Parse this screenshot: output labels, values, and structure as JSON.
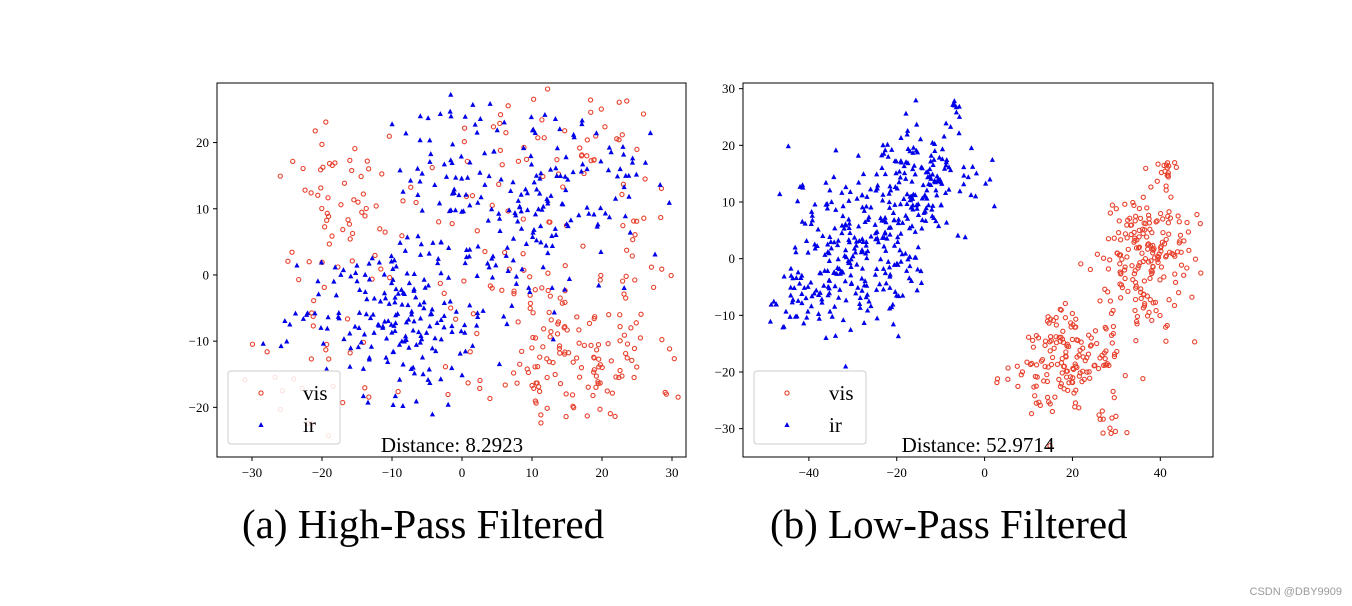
{
  "chart_data": [
    {
      "type": "scatter",
      "id": "panel-a",
      "title": "",
      "xlabel": "",
      "ylabel": "",
      "xlim": [
        -35,
        32
      ],
      "ylim": [
        -27.5,
        29
      ],
      "xticks": [
        -30,
        -20,
        -10,
        0,
        10,
        20,
        30
      ],
      "yticks": [
        -20,
        -10,
        0,
        10,
        20
      ],
      "tick_labels_x": [
        "−30",
        "−20",
        "−10",
        "0",
        "10",
        "20",
        "30"
      ],
      "tick_labels_y": [
        "−20",
        "−10",
        "0",
        "10",
        "20"
      ],
      "legend_position": "lower-left",
      "annotation": "Distance: 8.2923",
      "seed": 11,
      "series": [
        {
          "name": "vis",
          "marker": "circle",
          "color": "#e8402c",
          "clusters": [
            {
              "cx": 16,
              "cy": -12,
              "sx": 6,
              "sy": 6,
              "n": 140
            },
            {
              "cx": -17,
              "cy": 12,
              "sx": 5,
              "sy": 6,
              "n": 55
            },
            {
              "cx": 12,
              "cy": 19,
              "sx": 9,
              "sy": 5,
              "n": 55
            },
            {
              "cx": -20,
              "cy": -12,
              "sx": 5,
              "sy": 6,
              "n": 30
            },
            {
              "cx": 2,
              "cy": 3,
              "sx": 6,
              "sy": 7,
              "n": 30
            },
            {
              "cx": 26,
              "cy": 3,
              "sx": 2,
              "sy": 6,
              "n": 20
            }
          ]
        },
        {
          "name": "ir",
          "marker": "triangle",
          "color": "#0000e8",
          "clusters": [
            {
              "cx": -10,
              "cy": -6,
              "sx": 7,
              "sy": 6,
              "n": 190
            },
            {
              "cx": 8,
              "cy": 10,
              "sx": 7,
              "sy": 7,
              "n": 160
            },
            {
              "cx": -2,
              "cy": 20,
              "sx": 4,
              "sy": 5,
              "n": 30
            },
            {
              "cx": 20,
              "cy": 18,
              "sx": 5,
              "sy": 3,
              "n": 25
            }
          ]
        }
      ]
    },
    {
      "type": "scatter",
      "id": "panel-b",
      "title": "",
      "xlabel": "",
      "ylabel": "",
      "xlim": [
        -55,
        52
      ],
      "ylim": [
        -35,
        31
      ],
      "xticks": [
        -40,
        -20,
        0,
        20,
        40
      ],
      "yticks": [
        -30,
        -20,
        -10,
        0,
        10,
        20,
        30
      ],
      "tick_labels_x": [
        "−40",
        "−20",
        "0",
        "20",
        "40"
      ],
      "tick_labels_y": [
        "−30",
        "−20",
        "−10",
        "0",
        "10",
        "20",
        "30"
      ],
      "legend_position": "lower-left",
      "annotation": "Distance: 52.9714",
      "seed": 29,
      "series": [
        {
          "name": "vis",
          "marker": "circle",
          "color": "#e8402c",
          "clusters": [
            {
              "cx": 36,
              "cy": 1,
              "sx": 5,
              "sy": 6,
              "n": 190
            },
            {
              "cx": 19,
              "cy": -18,
              "sx": 6,
              "sy": 5,
              "n": 170
            },
            {
              "cx": 42,
              "cy": 15,
              "sx": 1.5,
              "sy": 1.5,
              "n": 14
            },
            {
              "cx": 29,
              "cy": -29,
              "sx": 1.5,
              "sy": 1.5,
              "n": 8
            }
          ]
        },
        {
          "name": "ir",
          "marker": "triangle",
          "color": "#0000e8",
          "clusters": [
            {
              "cx": -28,
              "cy": 2,
              "sx": 8,
              "sy": 7,
              "n": 250
            },
            {
              "cx": -14,
              "cy": 14,
              "sx": 6,
              "sy": 5,
              "n": 150
            },
            {
              "cx": -42,
              "cy": -7,
              "sx": 3,
              "sy": 2.5,
              "n": 40
            },
            {
              "cx": -7,
              "cy": 27,
              "sx": 0.6,
              "sy": 0.6,
              "n": 6
            }
          ]
        }
      ]
    }
  ],
  "captions": {
    "a": "(a) High-Pass Filtered",
    "b": "(b) Low-Pass Filtered"
  },
  "watermark": "CSDN @DBY9909"
}
